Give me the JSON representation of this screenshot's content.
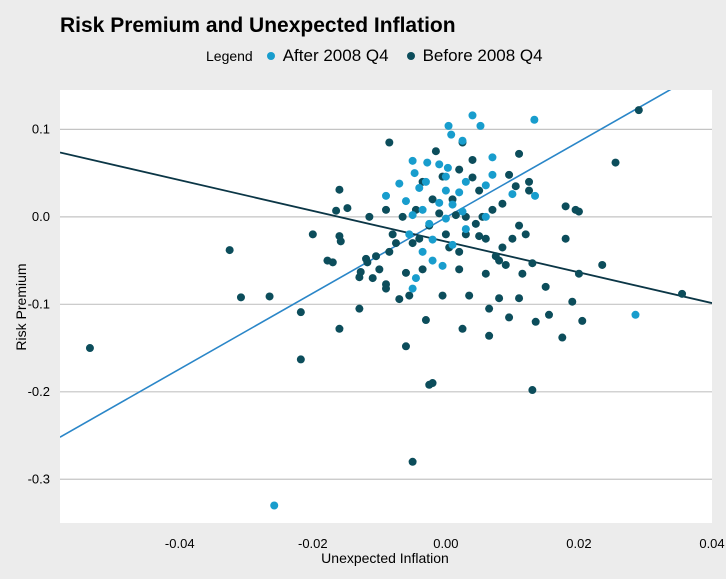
{
  "chart_data": {
    "type": "scatter",
    "title": "Risk Premium and Unexpected Inflation",
    "xlabel": "Unexpected Inflation",
    "ylabel": "Risk Premium",
    "xlim": [
      -0.058,
      0.04
    ],
    "ylim": [
      -0.35,
      0.145
    ],
    "x_ticks": [
      -0.04,
      -0.02,
      0.0,
      0.02,
      0.04
    ],
    "x_tick_labels": [
      "-0.04",
      "-0.02",
      "0.00",
      "0.02",
      "0.04"
    ],
    "y_ticks": [
      -0.3,
      -0.2,
      -0.1,
      0.0,
      0.1
    ],
    "y_tick_labels": [
      "-0.3",
      "-0.2",
      "-0.1",
      "0.0",
      "0.1"
    ],
    "grid": "horizontal",
    "legend": {
      "title": "Legend",
      "placement": "top",
      "entries": [
        {
          "label": "After 2008 Q4",
          "color": "#189dcd"
        },
        {
          "label": "Before 2008 Q4",
          "color": "#0c4d5b"
        }
      ]
    },
    "series": [
      {
        "name": "After 2008 Q4",
        "color": "#189dcd",
        "points": [
          [
            -0.0258,
            -0.33
          ],
          [
            0.0285,
            -0.112
          ],
          [
            0.0133,
            0.111
          ],
          [
            0.004,
            0.116
          ],
          [
            0.0004,
            0.104
          ],
          [
            0.0052,
            0.104
          ],
          [
            0.0025,
            0.087
          ],
          [
            0.0008,
            0.094
          ],
          [
            0.007,
            0.068
          ],
          [
            -0.005,
            0.064
          ],
          [
            -0.0028,
            0.062
          ],
          [
            -0.001,
            0.06
          ],
          [
            0.0003,
            0.056
          ],
          [
            -0.0047,
            0.05
          ],
          [
            0.0,
            0.046
          ],
          [
            0.007,
            0.048
          ],
          [
            -0.003,
            0.04
          ],
          [
            0.003,
            0.04
          ],
          [
            0.006,
            0.036
          ],
          [
            -0.007,
            0.038
          ],
          [
            -0.004,
            0.033
          ],
          [
            0.0,
            0.03
          ],
          [
            0.002,
            0.028
          ],
          [
            -0.009,
            0.024
          ],
          [
            0.01,
            0.026
          ],
          [
            0.0134,
            0.024
          ],
          [
            -0.006,
            0.018
          ],
          [
            -0.001,
            0.016
          ],
          [
            0.001,
            0.014
          ],
          [
            -0.0035,
            0.008
          ],
          [
            0.0025,
            0.006
          ],
          [
            -0.005,
            0.002
          ],
          [
            0.0,
            -0.002
          ],
          [
            -0.0025,
            -0.008
          ],
          [
            0.003,
            -0.014
          ],
          [
            -0.0055,
            -0.02
          ],
          [
            -0.002,
            -0.026
          ],
          [
            0.001,
            -0.032
          ],
          [
            -0.0035,
            -0.04
          ],
          [
            -0.002,
            -0.05
          ],
          [
            -0.0005,
            -0.056
          ],
          [
            -0.0045,
            -0.07
          ],
          [
            -0.005,
            -0.082
          ],
          [
            0.006,
            0.0
          ]
        ]
      },
      {
        "name": "Before 2008 Q4",
        "color": "#0c4d5b",
        "points": [
          [
            -0.0535,
            -0.15
          ],
          [
            -0.0325,
            -0.038
          ],
          [
            -0.0308,
            -0.092
          ],
          [
            -0.0265,
            -0.091
          ],
          [
            -0.0218,
            -0.109
          ],
          [
            -0.0218,
            -0.163
          ],
          [
            -0.02,
            -0.02
          ],
          [
            -0.0178,
            -0.05
          ],
          [
            -0.017,
            -0.052
          ],
          [
            -0.016,
            0.031
          ],
          [
            -0.0165,
            0.007
          ],
          [
            -0.016,
            -0.022
          ],
          [
            -0.0158,
            -0.028
          ],
          [
            -0.016,
            -0.128
          ],
          [
            -0.0148,
            0.01
          ],
          [
            -0.013,
            -0.069
          ],
          [
            -0.0128,
            -0.063
          ],
          [
            -0.013,
            -0.105
          ],
          [
            -0.012,
            -0.048
          ],
          [
            -0.0118,
            -0.052
          ],
          [
            -0.0115,
            0.0
          ],
          [
            -0.011,
            -0.07
          ],
          [
            -0.01,
            -0.06
          ],
          [
            -0.009,
            0.008
          ],
          [
            -0.009,
            -0.077
          ],
          [
            -0.009,
            -0.082
          ],
          [
            -0.0085,
            -0.04
          ],
          [
            -0.0085,
            0.085
          ],
          [
            -0.008,
            -0.02
          ],
          [
            -0.0075,
            -0.03
          ],
          [
            -0.007,
            -0.094
          ],
          [
            -0.0065,
            0.0
          ],
          [
            -0.006,
            -0.064
          ],
          [
            -0.006,
            -0.148
          ],
          [
            -0.0055,
            -0.09
          ],
          [
            -0.005,
            -0.03
          ],
          [
            -0.005,
            -0.28
          ],
          [
            -0.0045,
            0.008
          ],
          [
            -0.004,
            -0.025
          ],
          [
            -0.0035,
            0.04
          ],
          [
            -0.0035,
            -0.06
          ],
          [
            -0.003,
            -0.118
          ],
          [
            -0.0025,
            -0.01
          ],
          [
            -0.0025,
            -0.192
          ],
          [
            -0.002,
            -0.19
          ],
          [
            -0.002,
            0.02
          ],
          [
            -0.0015,
            0.075
          ],
          [
            -0.001,
            0.004
          ],
          [
            -0.0005,
            -0.09
          ],
          [
            -0.0005,
            0.046
          ],
          [
            0.0,
            -0.02
          ],
          [
            0.0005,
            -0.035
          ],
          [
            0.001,
            0.02
          ],
          [
            0.0015,
            0.002
          ],
          [
            0.002,
            0.054
          ],
          [
            0.002,
            -0.04
          ],
          [
            0.0025,
            -0.128
          ],
          [
            0.0025,
            0.085
          ],
          [
            0.003,
            0.0
          ],
          [
            0.003,
            -0.02
          ],
          [
            0.0035,
            -0.09
          ],
          [
            0.004,
            0.065
          ],
          [
            0.004,
            0.045
          ],
          [
            0.0045,
            -0.008
          ],
          [
            0.005,
            0.03
          ],
          [
            0.005,
            -0.022
          ],
          [
            0.0055,
            0.0
          ],
          [
            0.006,
            -0.025
          ],
          [
            0.006,
            -0.065
          ],
          [
            0.0065,
            -0.136
          ],
          [
            0.0065,
            -0.105
          ],
          [
            0.007,
            0.008
          ],
          [
            0.0075,
            -0.045
          ],
          [
            0.008,
            -0.05
          ],
          [
            0.008,
            -0.093
          ],
          [
            0.0085,
            -0.035
          ],
          [
            0.0085,
            0.015
          ],
          [
            0.009,
            -0.055
          ],
          [
            0.0095,
            -0.115
          ],
          [
            0.01,
            -0.025
          ],
          [
            0.0105,
            0.035
          ],
          [
            0.011,
            0.072
          ],
          [
            0.011,
            -0.093
          ],
          [
            0.0115,
            -0.065
          ],
          [
            0.012,
            -0.02
          ],
          [
            0.0125,
            0.03
          ],
          [
            0.0125,
            0.04
          ],
          [
            0.013,
            -0.198
          ],
          [
            0.013,
            -0.053
          ],
          [
            0.0135,
            -0.12
          ],
          [
            0.015,
            -0.08
          ],
          [
            0.0155,
            -0.112
          ],
          [
            0.0175,
            -0.138
          ],
          [
            0.018,
            0.012
          ],
          [
            0.018,
            -0.025
          ],
          [
            0.019,
            -0.097
          ],
          [
            0.0195,
            0.008
          ],
          [
            0.02,
            0.006
          ],
          [
            0.02,
            -0.065
          ],
          [
            0.0205,
            -0.119
          ],
          [
            0.0235,
            -0.055
          ],
          [
            0.0255,
            0.062
          ],
          [
            0.029,
            0.122
          ],
          [
            0.0355,
            -0.088
          ],
          [
            0.011,
            -0.01
          ],
          [
            0.0095,
            0.048
          ],
          [
            -0.0105,
            -0.045
          ],
          [
            0.002,
            -0.06
          ]
        ]
      }
    ],
    "fit_lines": [
      {
        "series": "After 2008 Q4",
        "color": "#2a86c8",
        "slope": 4.33,
        "intercept": -0.0007
      },
      {
        "series": "Before 2008 Q4",
        "color": "#0b3646",
        "slope": -1.757,
        "intercept": -0.0283
      }
    ]
  }
}
